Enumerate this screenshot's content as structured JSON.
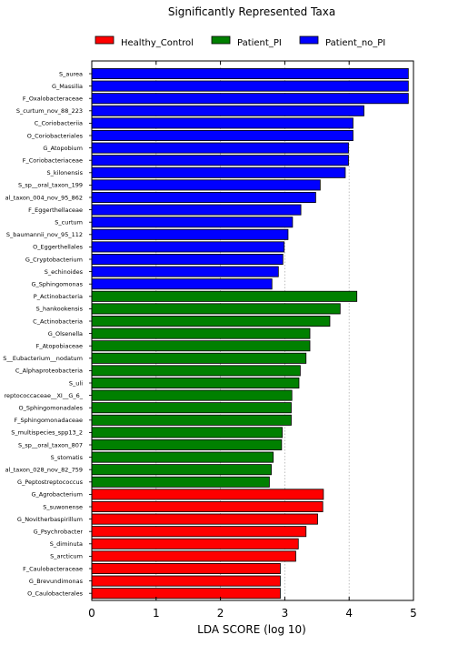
{
  "chart_data": {
    "type": "bar",
    "orientation": "horizontal",
    "title": "Significantly Represented Taxa",
    "xlabel": "LDA SCORE (log 10)",
    "ylabel": "",
    "xlim": [
      0,
      5
    ],
    "xticks": [
      "0",
      "1",
      "2",
      "3",
      "4",
      "5"
    ],
    "grid": "vertical dashed",
    "legend_position": "top",
    "series": [
      {
        "name": "Healthy_Control",
        "color": "#ff0000",
        "categories": [
          "G_Agrobacterium",
          "S_suwonense",
          "G_Novitherbaspirillum",
          "G_Psychrobacter",
          "S_diminuta",
          "S_arcticum",
          "F_Caulobacteraceae",
          "G_Brevundimonas",
          "O_Caulobacterales"
        ],
        "values": [
          3.6,
          3.59,
          3.51,
          3.33,
          3.21,
          3.17,
          2.93,
          2.93,
          2.93
        ]
      },
      {
        "name": "Patient_PI",
        "color": "#008000",
        "categories": [
          "P_Actinobacteria",
          "S_hankookensis",
          "C_Actinobacteria",
          "G_Olsenella",
          "F_Atopobiaceae",
          "S__Eubacterium__nodatum",
          "C_Alphaproteobacteria",
          "S_uli",
          "reptococcaceae__XI__G_6_",
          "O_Sphingomonadales",
          "F_Sphingomonadaceae",
          "S_multispecies_spp13_2",
          "S_sp__oral_taxon_807",
          "S_stomatis",
          "al_taxon_028_nov_82_759",
          "G_Peptostreptococcus"
        ],
        "values": [
          4.12,
          3.86,
          3.7,
          3.39,
          3.39,
          3.33,
          3.24,
          3.22,
          3.11,
          3.1,
          3.1,
          2.96,
          2.95,
          2.82,
          2.79,
          2.76
        ]
      },
      {
        "name": "Patient_no_PI",
        "color": "#0000ff",
        "categories": [
          "S_aurea",
          "G_Massilia",
          "F_Oxalobacteraceae",
          "S_curtum_nov_88_223",
          "C_Coriobacteriia",
          "O_Coriobacteriales",
          "G_Atopobium",
          "F_Coriobacteriaceae",
          "S_kilonensis",
          "S_sp__oral_taxon_199",
          "al_taxon_004_nov_95_862",
          "F_Eggerthellaceae",
          "S_curtum",
          "S_baumannii_nov_95_112",
          "O_Eggerthellales",
          "G_Cryptobacterium",
          "S_echinoides",
          "G_Sphingomonas"
        ],
        "values": [
          4.92,
          4.92,
          4.92,
          4.23,
          4.06,
          4.06,
          3.99,
          3.99,
          3.94,
          3.55,
          3.48,
          3.25,
          3.12,
          3.05,
          2.99,
          2.97,
          2.9,
          2.8
        ]
      }
    ],
    "bar_order_top_to_bottom": [
      "Patient_no_PI",
      "Patient_PI",
      "Healthy_Control"
    ]
  }
}
